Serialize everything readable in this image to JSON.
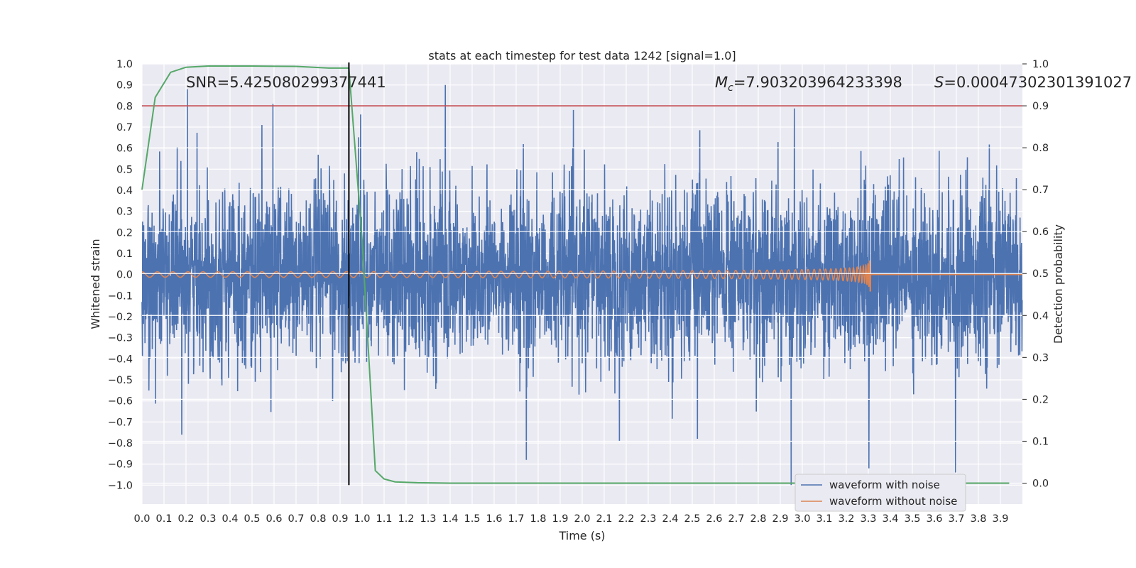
{
  "chart_data": {
    "type": "line",
    "title": "stats at each timestep for test data 1242 [signal=1.0]",
    "xlabel": "Time (s)",
    "ylabel": "Whitened strain",
    "y2label": "Detection probability",
    "xlim": [
      0.0,
      4.0
    ],
    "ylim": [
      -1.09,
      1.0
    ],
    "y2lim": [
      -0.05,
      1.0
    ],
    "x_ticks": [
      0.0,
      0.1,
      0.2,
      0.3,
      0.4,
      0.5,
      0.6,
      0.7,
      0.8,
      0.9,
      1.0,
      1.1,
      1.2,
      1.3,
      1.4,
      1.5,
      1.6,
      1.7,
      1.8,
      1.9,
      2.0,
      2.1,
      2.2,
      2.3,
      2.4,
      2.5,
      2.6,
      2.7,
      2.8,
      2.9,
      3.0,
      3.1,
      3.2,
      3.3,
      3.4,
      3.5,
      3.6,
      3.7,
      3.8,
      3.9
    ],
    "y_ticks": [
      1.0,
      0.9,
      0.8,
      0.7,
      0.6,
      0.5,
      0.4,
      0.3,
      0.2,
      0.1,
      0.0,
      -0.1,
      -0.2,
      -0.3,
      -0.4,
      -0.5,
      -0.6,
      -0.7,
      -0.8,
      -0.9,
      -1.0
    ],
    "y2_ticks": [
      1.0,
      0.9,
      0.8,
      0.7,
      0.6,
      0.5,
      0.4,
      0.3,
      0.2,
      0.1,
      0.0
    ],
    "annotations": {
      "snr": "SNR=5.425080299377441",
      "mc_symbol": "M",
      "mc_sub": "c",
      "mc_value": "=7.903203964233398",
      "s_symbol": "S",
      "s_value": "=0.00047302301391027"
    },
    "threshold": {
      "value": 0.9,
      "color": "#c44e52"
    },
    "marker_time": 0.94,
    "merger_time": 3.31,
    "series": [
      {
        "name": "waveform with noise",
        "color": "#4c72b0",
        "kind": "noise",
        "typical_amplitude": 0.33,
        "peak_values": [
          0.88,
          0.81,
          0.76,
          0.9,
          -0.88,
          -0.79,
          -0.78,
          -1.0,
          -0.92,
          -0.94
        ]
      },
      {
        "name": "waveform without noise",
        "color": "#dd8452",
        "kind": "chirp",
        "start_amplitude": 0.013,
        "peak_amplitude": 0.14
      },
      {
        "name": "Detection probability",
        "color": "#55a868",
        "axis": "right",
        "x": [
          0.0,
          0.06,
          0.13,
          0.2,
          0.3,
          0.5,
          0.7,
          0.85,
          0.94,
          1.0,
          1.06,
          1.1,
          1.15,
          1.25,
          1.4,
          2.0,
          3.0,
          3.94
        ],
        "values": [
          0.7,
          0.92,
          0.98,
          0.992,
          0.995,
          0.995,
          0.994,
          0.99,
          0.99,
          0.58,
          0.03,
          0.01,
          0.003,
          0.001,
          0.0,
          0.0,
          0.0,
          0.0
        ]
      }
    ],
    "legend": {
      "position": "bottom-right",
      "entries": [
        "waveform with noise",
        "waveform without noise"
      ]
    },
    "grid": true
  }
}
